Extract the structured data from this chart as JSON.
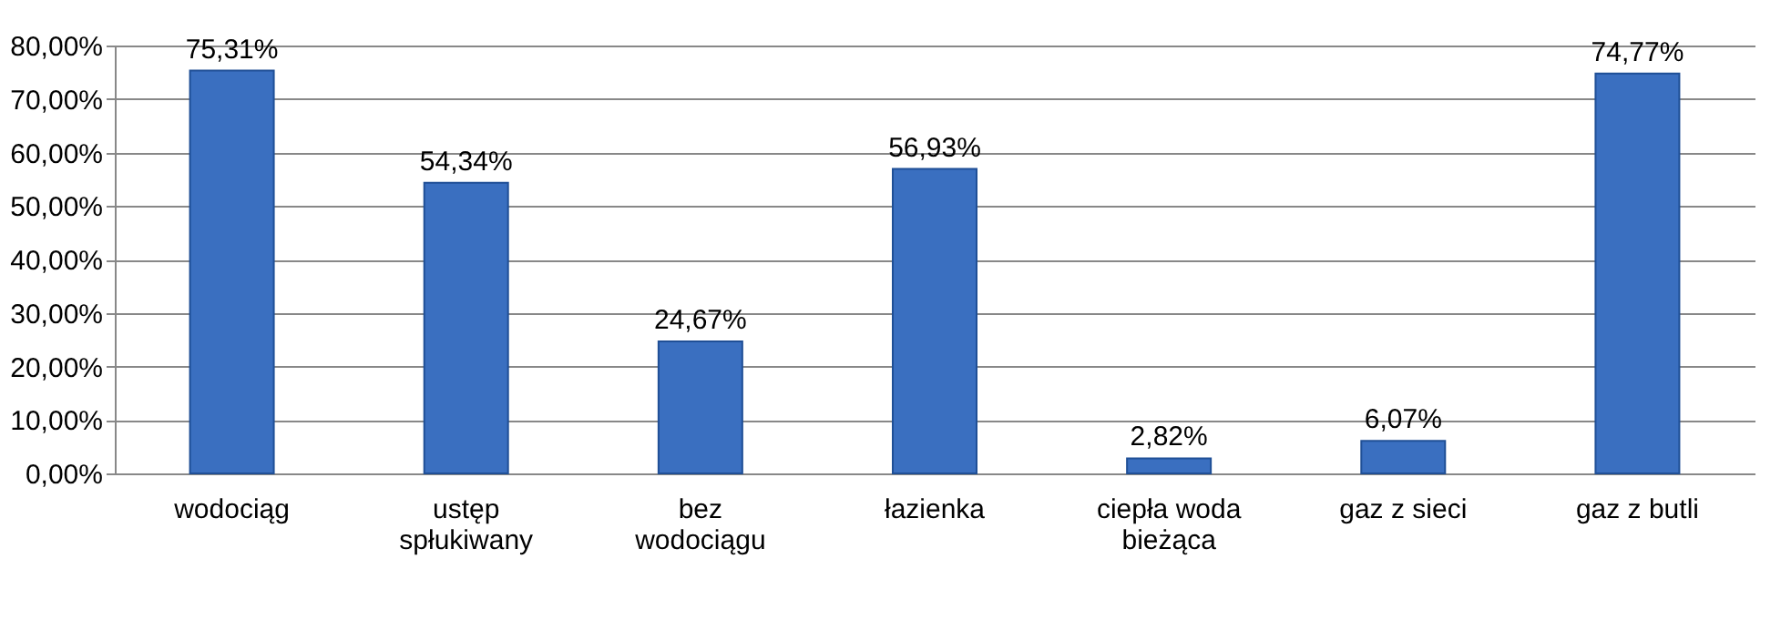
{
  "chart_data": {
    "type": "bar",
    "categories": [
      "wodociąg",
      "ustęp spłukiwany",
      "bez wodociągu",
      "łazienka",
      "ciepła woda bieżąca",
      "gaz z sieci",
      "gaz z butli"
    ],
    "values": [
      75.31,
      54.34,
      24.67,
      56.93,
      2.82,
      6.07,
      74.77
    ],
    "value_labels": [
      "75,31%",
      "54,34%",
      "24,67%",
      "56,93%",
      "2,82%",
      "6,07%",
      "74,77%"
    ],
    "color": "#3a6fc0",
    "ylim": [
      0,
      80
    ],
    "yticks": [
      {
        "value": 0,
        "label": "0,00%"
      },
      {
        "value": 10,
        "label": "10,00%"
      },
      {
        "value": 20,
        "label": "20,00%"
      },
      {
        "value": 30,
        "label": "30,00%"
      },
      {
        "value": 40,
        "label": "40,00%"
      },
      {
        "value": 50,
        "label": "50,00%"
      },
      {
        "value": 60,
        "label": "60,00%"
      },
      {
        "value": 70,
        "label": "70,00%"
      },
      {
        "value": 80,
        "label": "80,00%"
      }
    ],
    "grid": true
  }
}
